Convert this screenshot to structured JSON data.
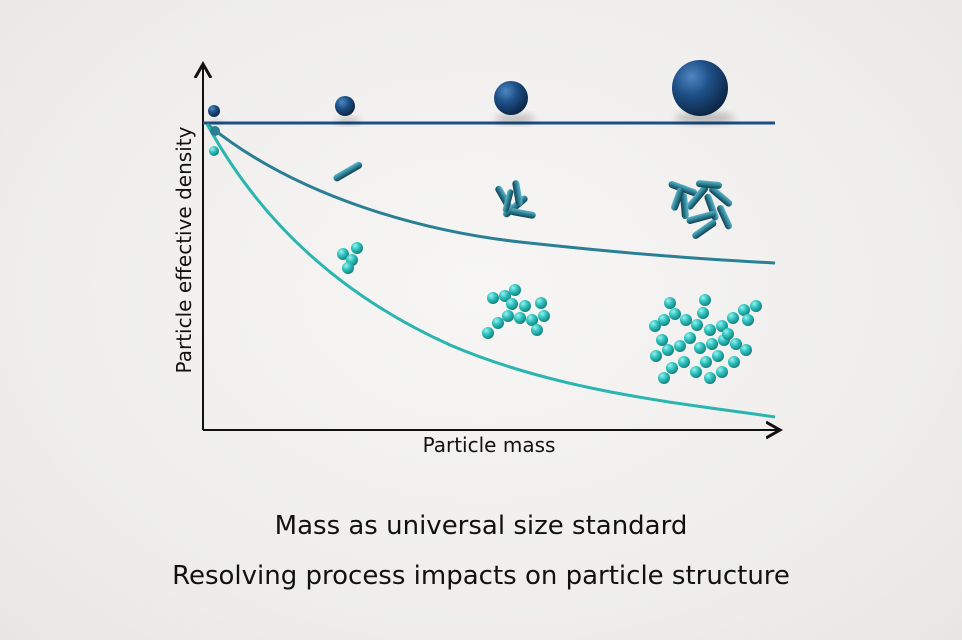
{
  "diagram": {
    "x_axis_label": "Particle mass",
    "y_axis_label": "Particle effective density",
    "curves": [
      {
        "name": "spheres",
        "color": "#1d4f86"
      },
      {
        "name": "rods",
        "color": "#2a7f95"
      },
      {
        "name": "aggregates",
        "color": "#2ab5b0"
      }
    ],
    "particle_colors": {
      "sphere": "#1d4f86",
      "rod": "#2a7f95",
      "aggregate": "#2ec4c0"
    }
  },
  "captions": {
    "line1": "Mass as universal size standard",
    "line2": "Resolving process impacts on particle structure"
  }
}
